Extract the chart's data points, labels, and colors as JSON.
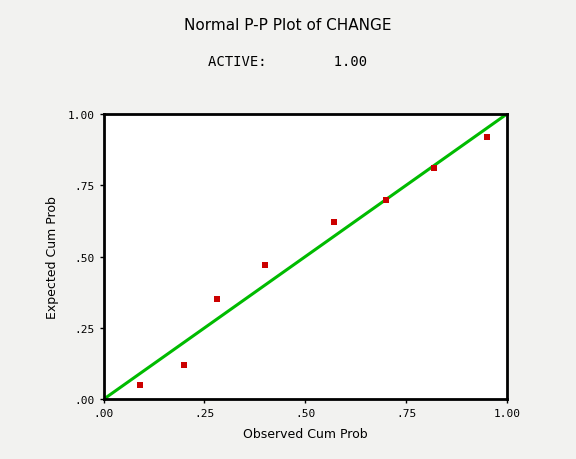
{
  "title": "Normal P-P Plot of CHANGE",
  "subtitle": "ACTIVE:        1.00",
  "xlabel": "Observed Cum Prob",
  "ylabel": "Expected Cum Prob",
  "xlim": [
    0.0,
    1.0
  ],
  "ylim": [
    0.0,
    1.0
  ],
  "xticks": [
    0.0,
    0.25,
    0.5,
    0.75,
    1.0
  ],
  "yticks": [
    0.0,
    0.25,
    0.5,
    0.75,
    1.0
  ],
  "xtick_labels": [
    ".00",
    ".25",
    ".50",
    ".75",
    "1.00"
  ],
  "ytick_labels": [
    ".00",
    ".25",
    ".50",
    ".75",
    "1.00"
  ],
  "scatter_x": [
    0.09,
    0.2,
    0.28,
    0.4,
    0.57,
    0.7,
    0.82,
    0.95
  ],
  "scatter_y": [
    0.05,
    0.12,
    0.35,
    0.47,
    0.62,
    0.7,
    0.81,
    0.92
  ],
  "scatter_color": "#cc0000",
  "line_color": "#00bb00",
  "bg_color": "#f2f2f0",
  "plot_bg_color": "#ffffff",
  "title_fontsize": 11,
  "subtitle_fontsize": 10,
  "label_fontsize": 9,
  "tick_fontsize": 8,
  "marker_size": 5,
  "linewidth": 2.2
}
